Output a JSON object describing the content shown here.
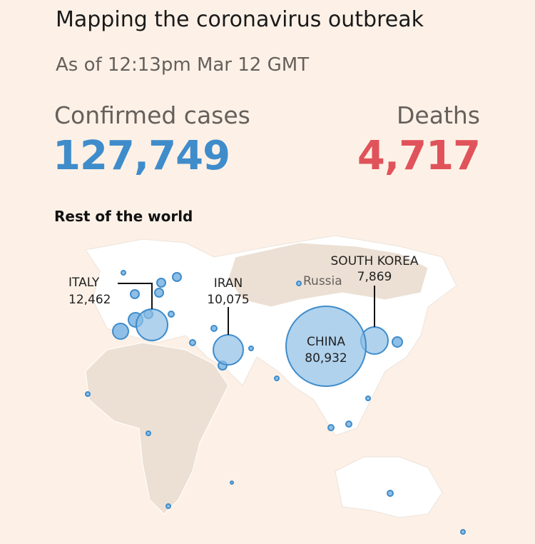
{
  "header": {
    "title": "Mapping the coronavirus outbreak",
    "subtitle": "As of 12:13pm Mar 12 GMT"
  },
  "stats": [
    {
      "label": "Confirmed cases",
      "value": "127,749"
    },
    {
      "label": "Deaths",
      "value": "4,717"
    }
  ],
  "map": {
    "title": "Rest of the world",
    "region_label": "Russia",
    "places": [
      {
        "label": "ITALY",
        "value": "12,462"
      },
      {
        "label": "IRAN",
        "value": "10,075"
      },
      {
        "label": "SOUTH KOREA",
        "value": "7,869"
      },
      {
        "label": "CHINA",
        "value": "80,932"
      }
    ]
  }
}
